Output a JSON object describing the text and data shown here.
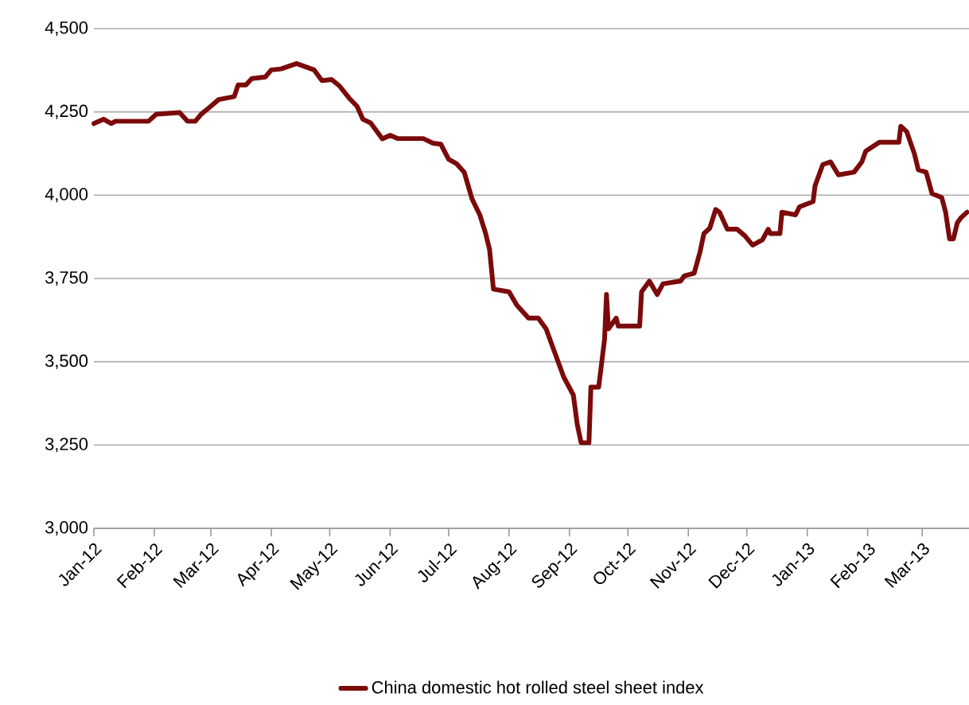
{
  "chart_data": {
    "type": "line",
    "xlim": [
      "2012-01-01",
      "2013-03-25"
    ],
    "ylim": [
      3000,
      4500
    ],
    "xticks": [
      {
        "value": "2012-01-01",
        "label": "Jan-12"
      },
      {
        "value": "2012-02-01",
        "label": "Feb-12"
      },
      {
        "value": "2012-03-01",
        "label": "Mar-12"
      },
      {
        "value": "2012-04-01",
        "label": "Apr-12"
      },
      {
        "value": "2012-05-01",
        "label": "May-12"
      },
      {
        "value": "2012-06-01",
        "label": "Jun-12"
      },
      {
        "value": "2012-07-01",
        "label": "Jul-12"
      },
      {
        "value": "2012-08-01",
        "label": "Aug-12"
      },
      {
        "value": "2012-09-01",
        "label": "Sep-12"
      },
      {
        "value": "2012-10-01",
        "label": "Oct-12"
      },
      {
        "value": "2012-11-01",
        "label": "Nov-12"
      },
      {
        "value": "2012-12-01",
        "label": "Dec-12"
      },
      {
        "value": "2013-01-01",
        "label": "Jan-13"
      },
      {
        "value": "2013-02-01",
        "label": "Feb-13"
      },
      {
        "value": "2013-03-01",
        "label": "Mar-13"
      }
    ],
    "yticks": [
      {
        "value": 3000,
        "label": "3,000"
      },
      {
        "value": 3250,
        "label": "3,250"
      },
      {
        "value": 3500,
        "label": "3,500"
      },
      {
        "value": 3750,
        "label": "3,750"
      },
      {
        "value": 4000,
        "label": "4,000"
      },
      {
        "value": 4250,
        "label": "4,250"
      },
      {
        "value": 4500,
        "label": "4,500"
      }
    ],
    "grid": "y",
    "legend": "bottom",
    "series": [
      {
        "name": "China domestic hot rolled steel sheet index",
        "color": "#7b0a0a",
        "x": [
          "2012-01-01",
          "2012-01-06",
          "2012-01-10",
          "2012-01-12",
          "2012-01-29",
          "2012-02-02",
          "2012-02-14",
          "2012-02-18",
          "2012-02-22",
          "2012-02-25",
          "2012-03-01",
          "2012-03-05",
          "2012-03-13",
          "2012-03-15",
          "2012-03-19",
          "2012-03-22",
          "2012-03-29",
          "2012-04-01",
          "2012-04-06",
          "2012-04-14",
          "2012-04-23",
          "2012-04-27",
          "2012-05-02",
          "2012-05-06",
          "2012-05-11",
          "2012-05-15",
          "2012-05-18",
          "2012-05-22",
          "2012-05-28",
          "2012-06-01",
          "2012-06-05",
          "2012-06-18",
          "2012-06-23",
          "2012-06-27",
          "2012-07-01",
          "2012-07-05",
          "2012-07-09",
          "2012-07-13",
          "2012-07-17",
          "2012-07-20",
          "2012-07-22",
          "2012-07-24",
          "2012-08-01",
          "2012-08-05",
          "2012-08-11",
          "2012-08-16",
          "2012-08-20",
          "2012-08-25",
          "2012-08-29",
          "2012-09-03",
          "2012-09-05",
          "2012-09-07",
          "2012-09-11",
          "2012-09-12",
          "2012-09-16",
          "2012-09-19",
          "2012-09-20",
          "2012-09-21",
          "2012-09-25",
          "2012-09-26",
          "2012-10-07",
          "2012-10-08",
          "2012-10-12",
          "2012-10-16",
          "2012-10-19",
          "2012-10-28",
          "2012-10-30",
          "2012-11-04",
          "2012-11-07",
          "2012-11-09",
          "2012-11-12",
          "2012-11-15",
          "2012-11-17",
          "2012-11-21",
          "2012-11-26",
          "2012-11-30",
          "2012-12-04",
          "2012-12-09",
          "2012-12-12",
          "2012-12-13",
          "2012-12-18",
          "2012-12-19",
          "2012-12-26",
          "2012-12-28",
          "2013-01-04",
          "2013-01-05",
          "2013-01-09",
          "2013-01-13",
          "2013-01-17",
          "2013-01-25",
          "2013-01-29",
          "2013-01-31",
          "2013-02-07",
          "2013-02-17",
          "2013-02-18",
          "2013-02-21",
          "2013-02-25",
          "2013-02-27",
          "2013-03-03",
          "2013-03-06",
          "2013-03-11",
          "2013-03-13",
          "2013-03-15",
          "2013-03-17",
          "2013-03-19",
          "2013-03-21",
          "2013-03-24"
        ],
        "values": [
          4215,
          4228,
          4215,
          4222,
          4222,
          4243,
          4248,
          4222,
          4222,
          4243,
          4267,
          4287,
          4296,
          4331,
          4331,
          4350,
          4355,
          4376,
          4379,
          4395,
          4376,
          4344,
          4347,
          4328,
          4291,
          4267,
          4228,
          4217,
          4169,
          4180,
          4170,
          4170,
          4156,
          4153,
          4108,
          4095,
          4069,
          3989,
          3941,
          3885,
          3837,
          3718,
          3710,
          3670,
          3631,
          3631,
          3599,
          3519,
          3455,
          3400,
          3312,
          3257,
          3257,
          3424,
          3424,
          3567,
          3702,
          3599,
          3631,
          3607,
          3607,
          3710,
          3742,
          3702,
          3734,
          3742,
          3758,
          3766,
          3830,
          3885,
          3901,
          3957,
          3949,
          3898,
          3898,
          3878,
          3850,
          3866,
          3898,
          3885,
          3885,
          3949,
          3941,
          3965,
          3981,
          4028,
          4092,
          4100,
          4061,
          4069,
          4100,
          4132,
          4159,
          4159,
          4207,
          4191,
          4124,
          4076,
          4069,
          4005,
          3993,
          3949,
          3869,
          3869,
          3917,
          3933,
          3949
        ]
      }
    ]
  }
}
